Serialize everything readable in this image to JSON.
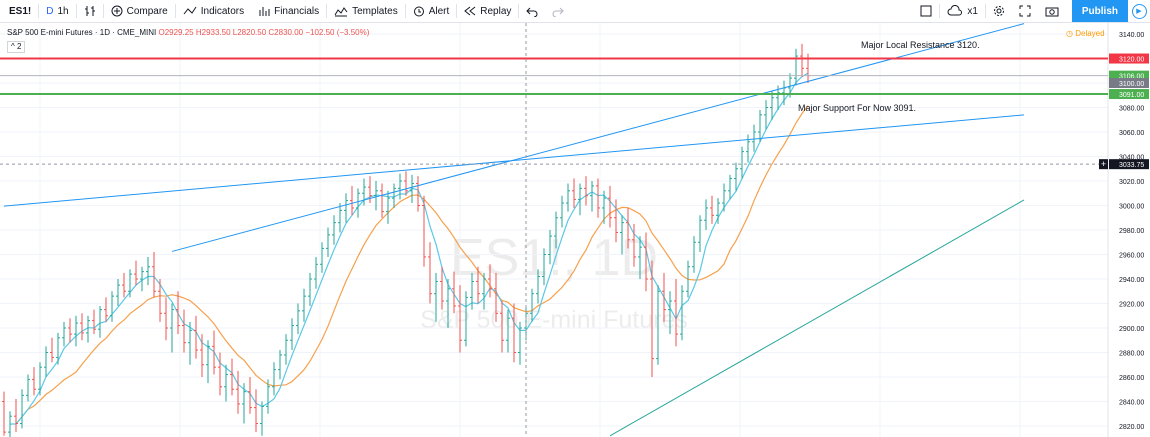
{
  "toolbar": {
    "symbol": "ES1!",
    "interval_icon": "D",
    "interval": "1h",
    "compare": "Compare",
    "indicators": "Indicators",
    "financials": "Financials",
    "templates": "Templates",
    "alert": "Alert",
    "replay": "Replay",
    "zoom": "x1",
    "publish": "Publish"
  },
  "legend": {
    "title": "S&P 500 E-mini Futures · 1D · CME_MINI",
    "open": "O2929.25",
    "high": "H2933.50",
    "low": "L2820.50",
    "close": "C2830.00",
    "change": "−102.50 (−3.50%)",
    "collapse": "2"
  },
  "delayed": "Delayed",
  "annotations": {
    "resistance": "Major Local Resistance 3120.",
    "support": "Major Support For Now 3091."
  },
  "watermark": {
    "symbol": "ES1!, 1D",
    "name": "S&P 500 E-mini Futures"
  },
  "colors": {
    "up": "#26a69a",
    "down": "#ef5350",
    "resistance": "#f23645",
    "support": "#4caf50",
    "trendline": "#2196f3",
    "ma_fast": "#5ac8e6",
    "ma_slow": "#f7a04b",
    "crosshair": "#9598a1"
  },
  "chart_data": {
    "type": "candlestick",
    "y_axis": {
      "min": 2811,
      "max": 3149,
      "ticks": [
        2820,
        2840,
        2860,
        2880,
        2900,
        2920,
        2940,
        2960,
        2980,
        3000,
        3020,
        3040,
        3060,
        3080,
        3100,
        3120,
        3140
      ]
    },
    "price_labels": [
      {
        "value": 3120,
        "text": "3120.00",
        "color": "#f23645"
      },
      {
        "value": 3106,
        "text": "3106.00",
        "color": "#4caf50"
      },
      {
        "value": 3100,
        "text": "3100.00",
        "color": "#787b86"
      },
      {
        "value": 3091,
        "text": "3091.00",
        "color": "#4caf50"
      },
      {
        "value": 3033.75,
        "text": "3033.75",
        "color": "#131722"
      }
    ],
    "horizontal_lines": [
      {
        "name": "resistance",
        "value": 3120,
        "color": "#f23645"
      },
      {
        "name": "support",
        "value": 3091,
        "color": "#4caf50"
      },
      {
        "name": "level-3106",
        "value": 3106,
        "color": "#b2b5be"
      }
    ],
    "crosshair": {
      "price": 3033.75,
      "bar": 87
    },
    "trendlines": [
      {
        "name": "upper-channel-line",
        "from": [
          28,
          2962.5
        ],
        "to": [
          170,
          3148.5
        ],
        "color": "#2196f3"
      },
      {
        "name": "middle-trendline",
        "from": [
          0,
          2999.5
        ],
        "to": [
          170,
          3074
        ],
        "color": "#2196f3"
      },
      {
        "name": "lower-channel-line",
        "from": [
          101,
          2812
        ],
        "to": [
          170,
          3004.5
        ],
        "color": "#26a69a"
      }
    ],
    "series_candles": [
      [
        2840,
        2848,
        2812,
        2815
      ],
      [
        2815,
        2832,
        2810,
        2828
      ],
      [
        2828,
        2842,
        2815,
        2822
      ],
      [
        2822,
        2850,
        2818,
        2845
      ],
      [
        2845,
        2862,
        2840,
        2858
      ],
      [
        2858,
        2868,
        2845,
        2850
      ],
      [
        2850,
        2872,
        2845,
        2868
      ],
      [
        2868,
        2885,
        2860,
        2880
      ],
      [
        2880,
        2892,
        2872,
        2876
      ],
      [
        2876,
        2896,
        2870,
        2892
      ],
      [
        2892,
        2905,
        2885,
        2900
      ],
      [
        2900,
        2908,
        2888,
        2895
      ],
      [
        2895,
        2910,
        2885,
        2904
      ],
      [
        2904,
        2912,
        2890,
        2896
      ],
      [
        2896,
        2910,
        2888,
        2906
      ],
      [
        2906,
        2915,
        2895,
        2899
      ],
      [
        2899,
        2918,
        2892,
        2915
      ],
      [
        2915,
        2925,
        2905,
        2910
      ],
      [
        2910,
        2930,
        2905,
        2926
      ],
      [
        2926,
        2940,
        2918,
        2935
      ],
      [
        2935,
        2945,
        2925,
        2930
      ],
      [
        2930,
        2948,
        2925,
        2944
      ],
      [
        2944,
        2955,
        2935,
        2940
      ],
      [
        2940,
        2950,
        2930,
        2946
      ],
      [
        2946,
        2958,
        2935,
        2950
      ],
      [
        2950,
        2962,
        2925,
        2930
      ],
      [
        2930,
        2940,
        2905,
        2912
      ],
      [
        2912,
        2925,
        2890,
        2900
      ],
      [
        2900,
        2920,
        2880,
        2915
      ],
      [
        2915,
        2930,
        2895,
        2902
      ],
      [
        2902,
        2915,
        2880,
        2888
      ],
      [
        2888,
        2905,
        2870,
        2898
      ],
      [
        2898,
        2910,
        2875,
        2882
      ],
      [
        2882,
        2895,
        2860,
        2870
      ],
      [
        2870,
        2890,
        2855,
        2885
      ],
      [
        2885,
        2898,
        2862,
        2868
      ],
      [
        2868,
        2880,
        2845,
        2852
      ],
      [
        2852,
        2870,
        2840,
        2862
      ],
      [
        2862,
        2875,
        2845,
        2850
      ],
      [
        2850,
        2865,
        2830,
        2838
      ],
      [
        2838,
        2855,
        2822,
        2848
      ],
      [
        2848,
        2860,
        2830,
        2835
      ],
      [
        2835,
        2850,
        2815,
        2822
      ],
      [
        2822,
        2840,
        2812,
        2836
      ],
      [
        2836,
        2858,
        2830,
        2852
      ],
      [
        2852,
        2872,
        2845,
        2866
      ],
      [
        2866,
        2882,
        2858,
        2878
      ],
      [
        2878,
        2895,
        2870,
        2890
      ],
      [
        2890,
        2908,
        2882,
        2902
      ],
      [
        2902,
        2920,
        2895,
        2914
      ],
      [
        2914,
        2932,
        2905,
        2926
      ],
      [
        2926,
        2945,
        2918,
        2940
      ],
      [
        2940,
        2958,
        2932,
        2952
      ],
      [
        2952,
        2970,
        2945,
        2965
      ],
      [
        2965,
        2982,
        2958,
        2976
      ],
      [
        2976,
        2992,
        2968,
        2986
      ],
      [
        2986,
        3002,
        2978,
        2996
      ],
      [
        2996,
        3010,
        2986,
        3004
      ],
      [
        3004,
        3016,
        2992,
        2998
      ],
      [
        2998,
        3014,
        2990,
        3010
      ],
      [
        3010,
        3022,
        3000,
        3015
      ],
      [
        3015,
        3024,
        3002,
        3008
      ],
      [
        3008,
        3020,
        2996,
        3012
      ],
      [
        3012,
        3018,
        2990,
        2995
      ],
      [
        2995,
        3012,
        2985,
        3006
      ],
      [
        3006,
        3018,
        2998,
        3014
      ],
      [
        3014,
        3026,
        3005,
        3020
      ],
      [
        3020,
        3028,
        3008,
        3012
      ],
      [
        3012,
        3025,
        3002,
        3018
      ],
      [
        3018,
        3024,
        2995,
        3000
      ],
      [
        3000,
        3008,
        2950,
        2958
      ],
      [
        2958,
        2970,
        2920,
        2928
      ],
      [
        2928,
        2945,
        2905,
        2938
      ],
      [
        2938,
        2950,
        2915,
        2922
      ],
      [
        2922,
        2940,
        2900,
        2932
      ],
      [
        2932,
        2946,
        2912,
        2918
      ],
      [
        2918,
        2935,
        2880,
        2890
      ],
      [
        2890,
        2930,
        2885,
        2925
      ],
      [
        2925,
        2945,
        2915,
        2938
      ],
      [
        2938,
        2950,
        2920,
        2928
      ],
      [
        2928,
        2945,
        2915,
        2940
      ],
      [
        2940,
        2952,
        2925,
        2932
      ],
      [
        2932,
        2945,
        2905,
        2912
      ],
      [
        2912,
        2922,
        2880,
        2890
      ],
      [
        2890,
        2915,
        2880,
        2908
      ],
      [
        2908,
        2920,
        2872,
        2880
      ],
      [
        2880,
        2905,
        2870,
        2900
      ],
      [
        2900,
        2918,
        2890,
        2912
      ],
      [
        2912,
        2932,
        2905,
        2928
      ],
      [
        2928,
        2948,
        2920,
        2942
      ],
      [
        2942,
        2965,
        2935,
        2960
      ],
      [
        2960,
        2980,
        2952,
        2975
      ],
      [
        2975,
        2995,
        2965,
        2990
      ],
      [
        2990,
        3008,
        2982,
        3002
      ],
      [
        3002,
        3018,
        2995,
        3012
      ],
      [
        3012,
        3022,
        2998,
        3005
      ],
      [
        3005,
        3018,
        2992,
        3014
      ],
      [
        3014,
        3024,
        3000,
        3008
      ],
      [
        3008,
        3020,
        2995,
        3016
      ],
      [
        3016,
        3022,
        2990,
        2998
      ],
      [
        2998,
        3012,
        2985,
        3006
      ],
      [
        3006,
        3016,
        2982,
        2990
      ],
      [
        2990,
        3005,
        2970,
        2978
      ],
      [
        2978,
        2992,
        2960,
        2986
      ],
      [
        2986,
        2998,
        2965,
        2972
      ],
      [
        2972,
        2985,
        2950,
        2958
      ],
      [
        2958,
        2975,
        2940,
        2966
      ],
      [
        2966,
        2978,
        2930,
        2940
      ],
      [
        2940,
        2955,
        2860,
        2875
      ],
      [
        2875,
        2935,
        2870,
        2930
      ],
      [
        2930,
        2945,
        2905,
        2915
      ],
      [
        2915,
        2930,
        2895,
        2922
      ],
      [
        2922,
        2940,
        2885,
        2895
      ],
      [
        2895,
        2935,
        2890,
        2930
      ],
      [
        2930,
        2955,
        2925,
        2950
      ],
      [
        2950,
        2975,
        2945,
        2970
      ],
      [
        2970,
        2992,
        2962,
        2988
      ],
      [
        2988,
        3005,
        2980,
        2998
      ],
      [
        2998,
        3008,
        2985,
        2992
      ],
      [
        2992,
        3006,
        2985,
        3002
      ],
      [
        3002,
        3018,
        2995,
        3012
      ],
      [
        3012,
        3025,
        3005,
        3022
      ],
      [
        3022,
        3035,
        3012,
        3030
      ],
      [
        3030,
        3048,
        3022,
        3044
      ],
      [
        3044,
        3058,
        3035,
        3052
      ],
      [
        3052,
        3066,
        3044,
        3060
      ],
      [
        3060,
        3078,
        3052,
        3074
      ],
      [
        3074,
        3086,
        3062,
        3080
      ],
      [
        3080,
        3094,
        3070,
        3088
      ],
      [
        3088,
        3098,
        3078,
        3092
      ],
      [
        3092,
        3102,
        3082,
        3096
      ],
      [
        3096,
        3108,
        3088,
        3104
      ],
      [
        3104,
        3128,
        3098,
        3122
      ],
      [
        3122,
        3132,
        3105,
        3112
      ],
      [
        3112,
        3124,
        3100,
        3106
      ]
    ]
  }
}
